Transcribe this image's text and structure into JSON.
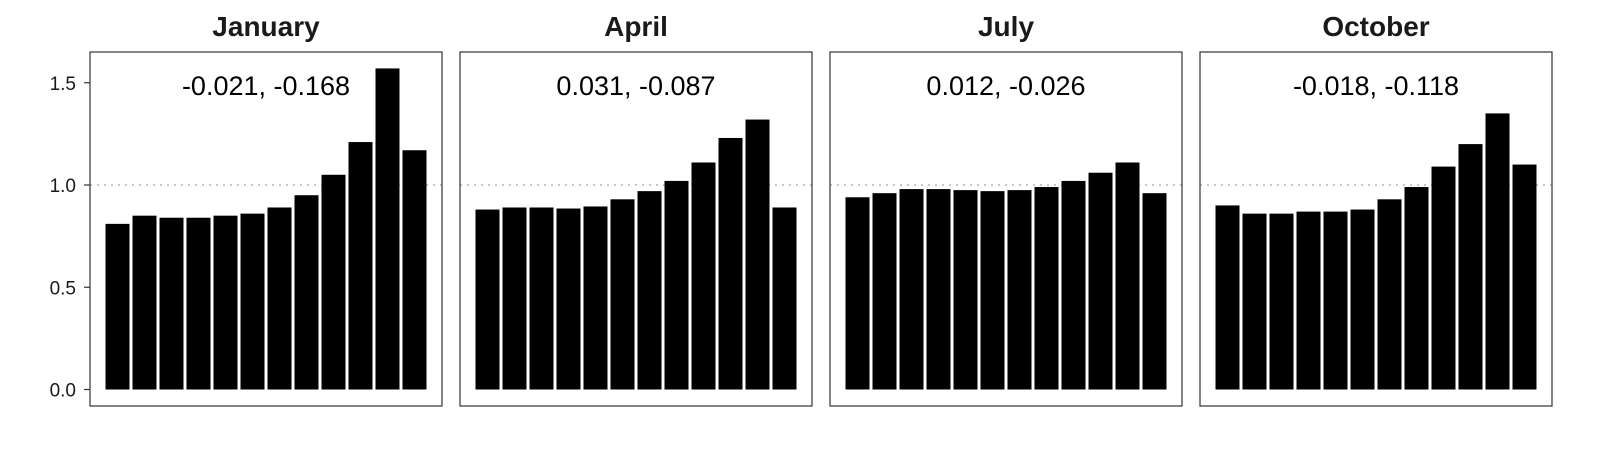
{
  "chart_data": {
    "type": "bar",
    "layout": "faceted",
    "y_ticks": [
      0.0,
      0.5,
      1.0,
      1.5
    ],
    "y_tick_labels": [
      "0.0",
      "0.5",
      "1.0",
      "1.5"
    ],
    "ylim": [
      0,
      1.6
    ],
    "reference_line": 1.0,
    "grid": false,
    "bar_color": "#000000",
    "reference_line_color": "#b3b3b3",
    "panels": [
      {
        "title": "January",
        "annotation": "-0.021, -0.168",
        "values": [
          0.81,
          0.85,
          0.84,
          0.84,
          0.85,
          0.86,
          0.89,
          0.95,
          1.05,
          1.21,
          1.57,
          1.17
        ]
      },
      {
        "title": "April",
        "annotation": "0.031, -0.087",
        "values": [
          0.88,
          0.89,
          0.89,
          0.885,
          0.895,
          0.93,
          0.97,
          1.02,
          1.11,
          1.23,
          1.32,
          0.89
        ]
      },
      {
        "title": "July",
        "annotation": "0.012, -0.026",
        "values": [
          0.94,
          0.96,
          0.98,
          0.98,
          0.975,
          0.97,
          0.975,
          0.99,
          1.02,
          1.06,
          1.11,
          0.96
        ]
      },
      {
        "title": "October",
        "annotation": "-0.018, -0.118",
        "values": [
          0.9,
          0.86,
          0.86,
          0.87,
          0.87,
          0.88,
          0.93,
          0.99,
          1.09,
          1.2,
          1.35,
          1.1
        ]
      }
    ]
  }
}
